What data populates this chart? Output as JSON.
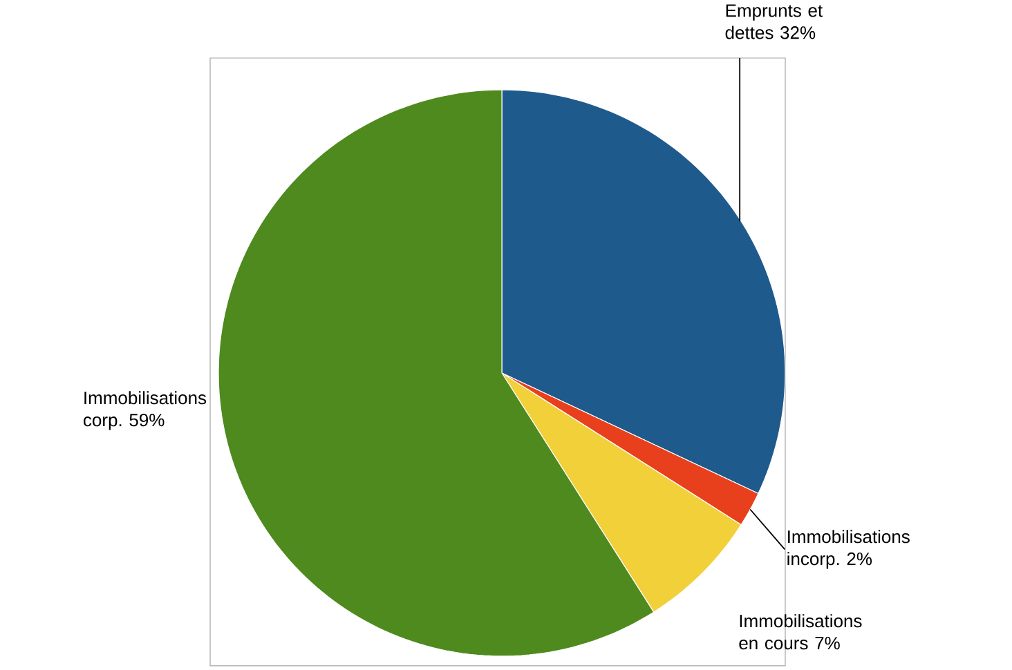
{
  "chart_data": {
    "type": "pie",
    "categories": [
      "Emprunts et dettes",
      "Immobilisations incorp.",
      "Immobilisations en cours",
      "Immobilisations corp."
    ],
    "values": [
      32,
      2,
      7,
      59
    ],
    "value_labels": [
      "32%",
      "2%",
      "7%",
      "59%"
    ],
    "colors": [
      "#1f5a8c",
      "#e8401c",
      "#f2d03a",
      "#4e8a1e"
    ]
  }
}
